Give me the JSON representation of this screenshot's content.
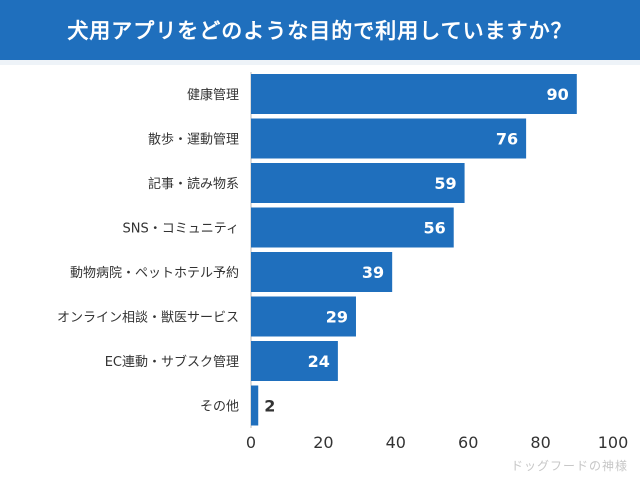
{
  "chart_data": {
    "type": "bar",
    "orientation": "horizontal",
    "title": "犬用アプリをどのような目的で利用していますか？",
    "categories": [
      "健康管理",
      "散歩・運動管理",
      "記事・読み物系",
      "SNS・コミュニティ",
      "動物病院・ペットホテル予約",
      "オンライン相談・獣医サービス",
      "EC連動・サブスク管理",
      "その他"
    ],
    "values": [
      90,
      76,
      59,
      56,
      39,
      29,
      24,
      2
    ],
    "xlim": [
      0,
      100
    ],
    "xticks": [
      0,
      20,
      40,
      60,
      80,
      100
    ],
    "xlabel": "",
    "ylabel": "",
    "grid": false,
    "legend": "none",
    "bar_color": "#1f6fbd"
  },
  "watermark": "ドッグフードの神様",
  "colors": {
    "header_bg": "#1f6fbd",
    "bar": "#1f6fbd",
    "value_inside": "#ffffff",
    "value_outside": "#333333"
  }
}
